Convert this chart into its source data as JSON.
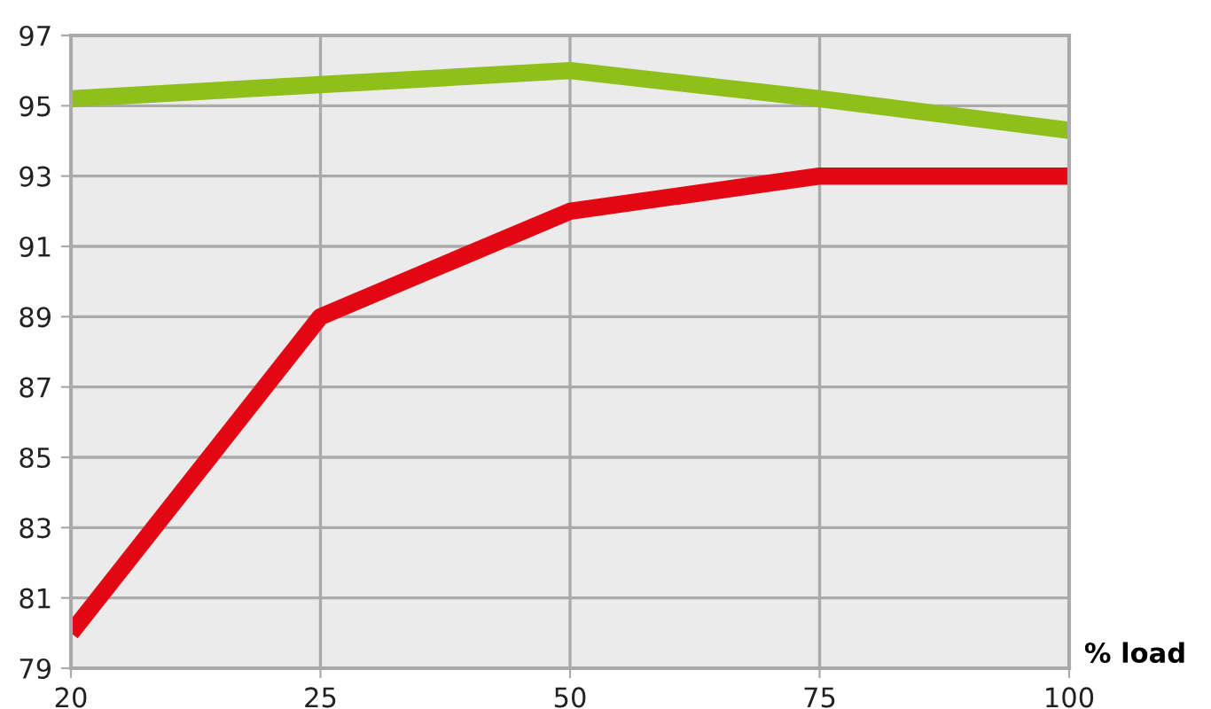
{
  "chart_data": {
    "type": "line",
    "xlabel": "% load",
    "categories": [
      "20",
      "25",
      "50",
      "75",
      "100"
    ],
    "series": [
      {
        "color": "#8fbf1a",
        "values": [
          95.2,
          95.6,
          96.0,
          95.2,
          94.3
        ]
      },
      {
        "color": "#e30613",
        "values": [
          80.0,
          89.0,
          92.0,
          93.0,
          93.0
        ]
      }
    ],
    "ylim": [
      79,
      97
    ],
    "yticks": [
      79,
      81,
      83,
      85,
      87,
      89,
      91,
      93,
      95,
      97
    ],
    "grid": true,
    "legend": false,
    "marker": "none",
    "line_style": "solid"
  }
}
